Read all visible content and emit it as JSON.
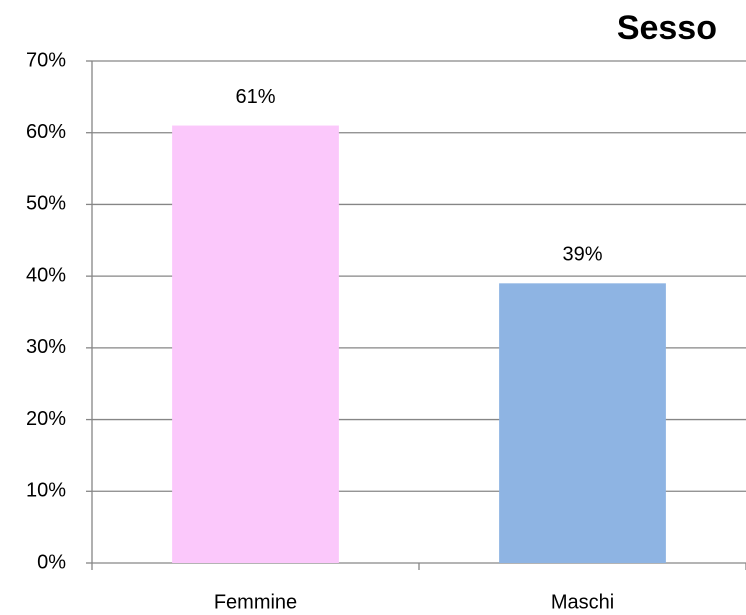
{
  "chart_data": {
    "type": "bar",
    "title": "Sesso",
    "categories": [
      "Femmine",
      "Maschi"
    ],
    "values": [
      61,
      39
    ],
    "value_labels": [
      "61%",
      "39%"
    ],
    "colors": [
      "#fbc8fb",
      "#8eb4e3"
    ],
    "ylim": [
      0,
      70
    ],
    "yticks": [
      {
        "value": 0,
        "label": "0%"
      },
      {
        "value": 10,
        "label": "10%"
      },
      {
        "value": 20,
        "label": "20%"
      },
      {
        "value": 30,
        "label": "30%"
      },
      {
        "value": 40,
        "label": "40%"
      },
      {
        "value": 50,
        "label": "50%"
      },
      {
        "value": 60,
        "label": "60%"
      },
      {
        "value": 70,
        "label": "70%"
      }
    ],
    "grid": true
  }
}
